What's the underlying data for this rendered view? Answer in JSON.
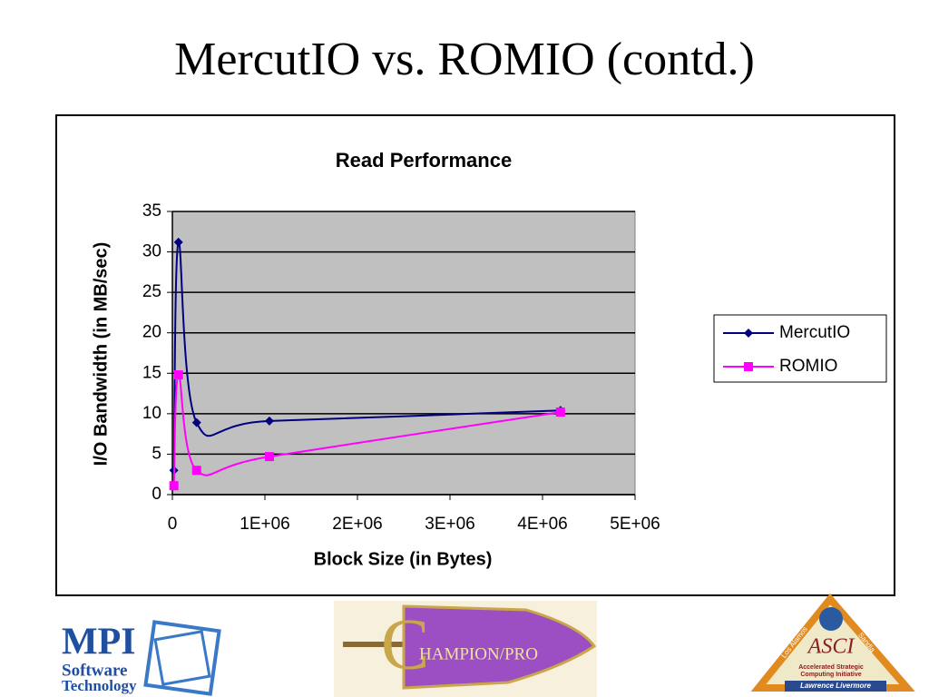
{
  "slide_title": "MercutIO vs. ROMIO (contd.)",
  "chart_data": {
    "type": "line",
    "title": "Read Performance",
    "x_label": "Block Size (in Bytes)",
    "y_label": "I/O Bandwidth (in MB/sec)",
    "x": [
      16384,
      65536,
      262144,
      1048576,
      4194304
    ],
    "series": [
      {
        "name": "MercutIO",
        "color": "#000080",
        "marker": "diamond",
        "values": [
          3,
          31.2,
          8.9,
          9.1,
          10.4
        ]
      },
      {
        "name": "ROMIO",
        "color": "#ff00ff",
        "marker": "square",
        "values": [
          1.1,
          14.8,
          3.0,
          4.7,
          10.2
        ]
      }
    ],
    "xlim": [
      0,
      5000000
    ],
    "xticks": [
      0,
      {
        "value": 1000000,
        "label": "1E+06"
      },
      {
        "value": 2000000,
        "label": "2E+06"
      },
      {
        "value": 3000000,
        "label": "3E+06"
      },
      {
        "value": 4000000,
        "label": "4E+06"
      },
      {
        "value": 5000000,
        "label": "5E+06"
      }
    ],
    "ylim": [
      0,
      35
    ],
    "yticks": [
      0,
      5,
      10,
      15,
      20,
      25,
      30,
      35
    ],
    "grid": true,
    "smooth": true,
    "legend": "right"
  },
  "logos": {
    "mpi": [
      "MPI",
      "Software",
      "Technology"
    ],
    "champion": [
      "C",
      "HAMPION/PRO"
    ],
    "asci": {
      "name": "ASCI",
      "subtitle": [
        "Accelerated Strategic",
        "Computing Initiative"
      ],
      "labs": [
        "Los Alamos",
        "Sandia",
        "Lawrence Livermore"
      ]
    }
  }
}
